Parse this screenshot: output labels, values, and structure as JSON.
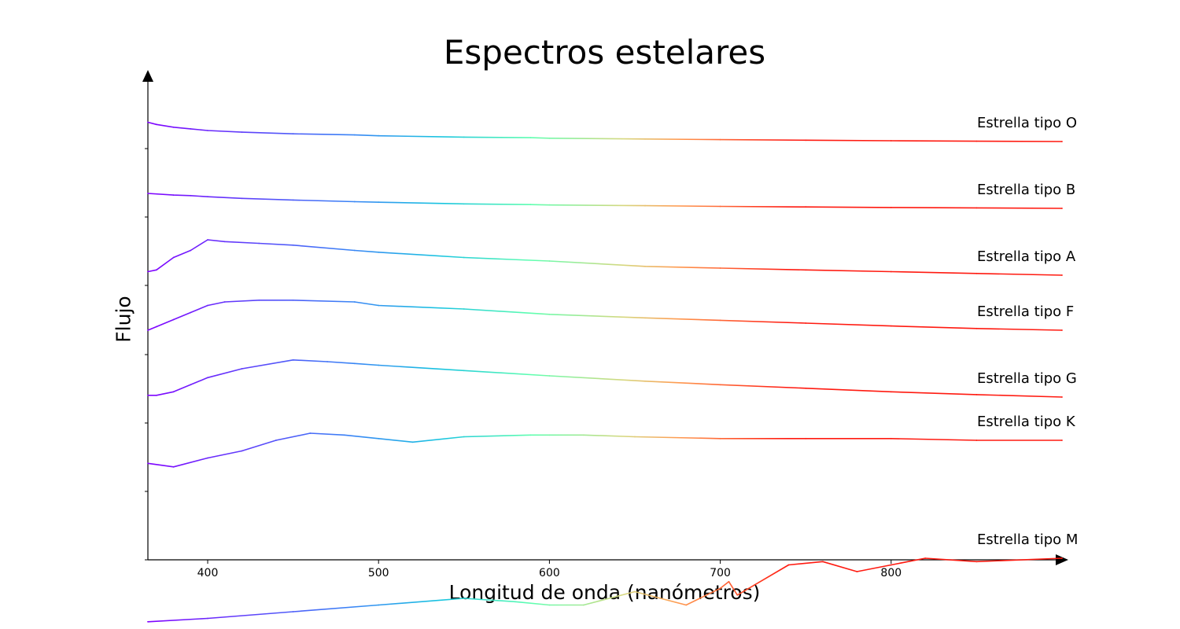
{
  "chart_data": {
    "type": "line",
    "title": "Espectros estelares",
    "xlabel": "Longitud de onda (nanómetros)",
    "ylabel": "Flujo",
    "xlim": [
      365,
      900
    ],
    "xticks": [
      400,
      500,
      600,
      700,
      800
    ],
    "xtick_labels": [
      "400",
      "500",
      "600",
      "700",
      "800"
    ],
    "y_tick_labels_shown": false,
    "grid": false,
    "color_map": "rainbow (violet at short wavelength to red at long wavelength)",
    "colors": {
      "violet": "#8000ff",
      "blue": "#3b83f6",
      "cyan": "#18c4e0",
      "green": "#60ffb0",
      "yellow": "#d6d880",
      "orange": "#ff9a50",
      "red": "#ff1a10"
    },
    "series": [
      {
        "name": "Estrella tipo O",
        "x": [
          365,
          370,
          380,
          390,
          400,
          420,
          450,
          486,
          500,
          550,
          589,
          600,
          656,
          700,
          750,
          800,
          850,
          900
        ],
        "y": [
          10.2,
          10.0,
          9.75,
          9.6,
          9.45,
          9.3,
          9.15,
          9.05,
          8.97,
          8.85,
          8.8,
          8.75,
          8.68,
          8.62,
          8.57,
          8.52,
          8.48,
          8.45
        ]
      },
      {
        "name": "Estrella tipo B",
        "x": [
          365,
          380,
          390,
          400,
          420,
          450,
          486,
          500,
          550,
          589,
          600,
          656,
          700,
          750,
          800,
          850,
          900
        ],
        "y": [
          9.0,
          8.85,
          8.8,
          8.7,
          8.55,
          8.4,
          8.25,
          8.2,
          8.05,
          7.98,
          7.95,
          7.88,
          7.82,
          7.77,
          7.72,
          7.68,
          7.64
        ]
      },
      {
        "name": "Estrella tipo A",
        "x": [
          365,
          370,
          380,
          390,
          400,
          410,
          430,
          450,
          486,
          500,
          550,
          600,
          656,
          700,
          750,
          800,
          850,
          900
        ],
        "y": [
          6.4,
          6.45,
          6.8,
          7.0,
          7.3,
          7.25,
          7.2,
          7.15,
          7.0,
          6.95,
          6.8,
          6.7,
          6.55,
          6.5,
          6.45,
          6.4,
          6.35,
          6.3
        ]
      },
      {
        "name": "Estrella tipo F",
        "x": [
          365,
          370,
          380,
          390,
          400,
          410,
          430,
          450,
          486,
          500,
          550,
          600,
          656,
          700,
          750,
          800,
          850,
          900
        ],
        "y": [
          5.5,
          5.6,
          5.8,
          6.0,
          6.2,
          6.3,
          6.35,
          6.35,
          6.3,
          6.2,
          6.1,
          5.95,
          5.85,
          5.78,
          5.7,
          5.62,
          5.55,
          5.5
        ]
      },
      {
        "name": "Estrella tipo G",
        "x": [
          365,
          370,
          380,
          390,
          400,
          420,
          450,
          470,
          486,
          500,
          550,
          600,
          656,
          700,
          750,
          800,
          850,
          900
        ],
        "y": [
          4.5,
          4.5,
          4.6,
          4.8,
          5.0,
          5.25,
          5.5,
          5.45,
          5.4,
          5.35,
          5.2,
          5.05,
          4.9,
          4.8,
          4.7,
          4.6,
          4.52,
          4.45
        ]
      },
      {
        "name": "Estrella tipo K",
        "x": [
          365,
          380,
          400,
          420,
          440,
          460,
          480,
          500,
          520,
          550,
          589,
          600,
          620,
          650,
          700,
          750,
          800,
          850,
          900
        ],
        "y": [
          1.2,
          1.1,
          1.35,
          1.55,
          1.85,
          2.05,
          2.0,
          1.9,
          1.8,
          1.95,
          2.0,
          2.0,
          2.0,
          1.95,
          1.9,
          1.9,
          1.9,
          1.85,
          1.85
        ]
      },
      {
        "name": "Estrella tipo M",
        "x": [
          365,
          400,
          450,
          500,
          550,
          580,
          600,
          620,
          650,
          680,
          700,
          705,
          710,
          740,
          760,
          780,
          800,
          820,
          850,
          900
        ],
        "y": [
          0.05,
          0.1,
          0.2,
          0.3,
          0.4,
          0.35,
          0.3,
          0.3,
          0.5,
          0.3,
          0.55,
          0.65,
          0.45,
          0.9,
          0.95,
          0.8,
          0.9,
          1.0,
          0.95,
          1.0
        ]
      }
    ],
    "series_label_position": "right end of each spectrum",
    "axis_arrows": true
  }
}
